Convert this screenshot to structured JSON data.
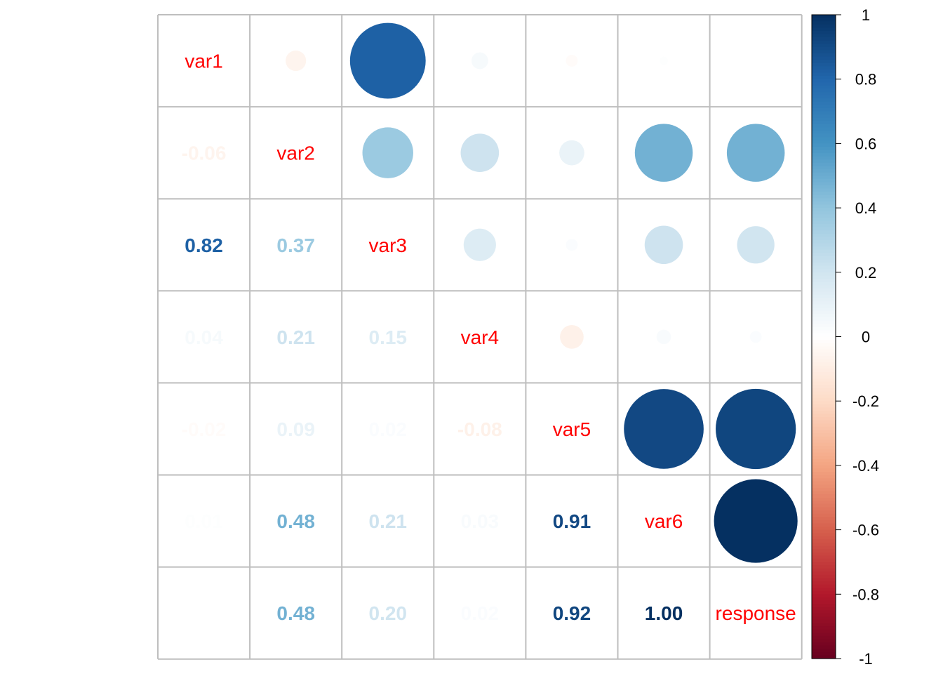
{
  "chart_data": {
    "type": "heatmap",
    "variables": [
      "var1",
      "var2",
      "var3",
      "var4",
      "var5",
      "var6",
      "response"
    ],
    "matrix": [
      [
        1.0,
        -0.06,
        0.82,
        0.04,
        -0.02,
        0.01,
        0.0
      ],
      [
        -0.06,
        1.0,
        0.37,
        0.21,
        0.09,
        0.48,
        0.48
      ],
      [
        0.82,
        0.37,
        1.0,
        0.15,
        0.02,
        0.21,
        0.2
      ],
      [
        0.04,
        0.21,
        0.15,
        1.0,
        -0.08,
        0.03,
        0.02
      ],
      [
        -0.02,
        0.09,
        0.02,
        -0.08,
        1.0,
        0.91,
        0.92
      ],
      [
        0.01,
        0.48,
        0.21,
        0.03,
        0.91,
        1.0,
        1.0
      ],
      [
        0.0,
        0.48,
        0.2,
        0.02,
        0.92,
        1.0,
        1.0
      ]
    ],
    "upper": "circle",
    "lower": "number",
    "diagonal_label_color": "#ff0000",
    "colorbar": {
      "range": [
        -1,
        1
      ],
      "ticks": [
        "1",
        "0.8",
        "0.6",
        "0.4",
        "0.2",
        "0",
        "-0.2",
        "-0.4",
        "-0.6",
        "-0.8",
        "-1"
      ],
      "tick_values": [
        1,
        0.8,
        0.6,
        0.4,
        0.2,
        0,
        -0.2,
        -0.4,
        -0.6,
        -0.8,
        -1
      ],
      "palette": [
        "#67001F",
        "#B2182B",
        "#D6604D",
        "#F4A582",
        "#FDDBC7",
        "#FFFFFF",
        "#D1E5F0",
        "#92C5DE",
        "#4393C3",
        "#2166AC",
        "#053061"
      ]
    },
    "grid_color": "#bebebe"
  }
}
